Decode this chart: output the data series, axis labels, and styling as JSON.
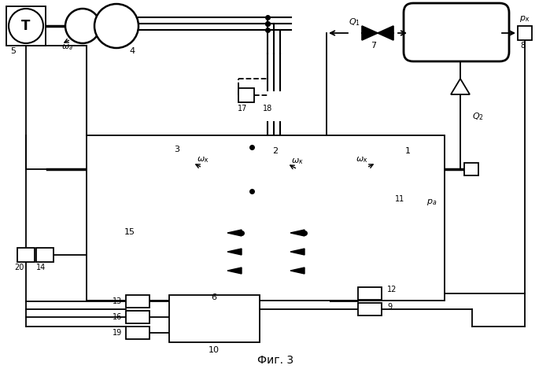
{
  "title": "Фиг. 3",
  "bg_color": "#ffffff",
  "line_color": "#000000",
  "fig_width": 6.99,
  "fig_height": 4.69,
  "dpi": 100
}
